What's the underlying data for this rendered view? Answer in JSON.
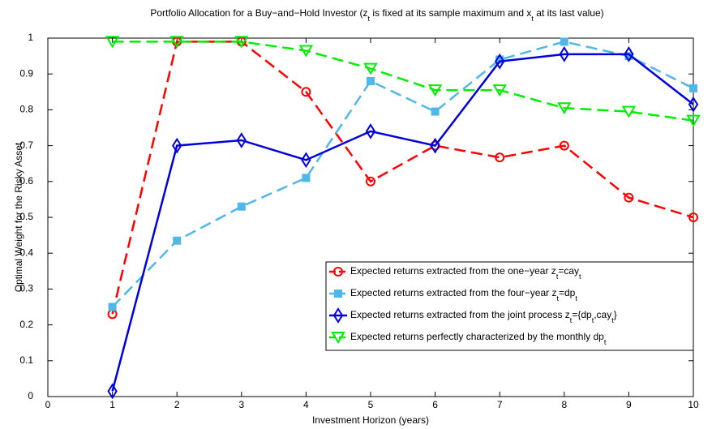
{
  "chart_data": {
    "type": "line",
    "title": [
      "Portfolio Allocation for a Buy−and−Hold Investor (z",
      "t",
      " is fixed at its sample maximum and x",
      "t",
      " at its last value)"
    ],
    "x_label": "Investment Horizon (years)",
    "y_label": "Optimal Weight for the Risky Asset",
    "x": [
      1,
      2,
      3,
      4,
      5,
      6,
      7,
      8,
      9,
      10
    ],
    "xlim": [
      0,
      10
    ],
    "xticks": [
      0,
      1,
      2,
      3,
      4,
      5,
      6,
      7,
      8,
      9,
      10
    ],
    "ylim": [
      0,
      1
    ],
    "yticks": [
      0,
      0.1,
      0.2,
      0.3,
      0.4,
      0.5,
      0.6,
      0.7,
      0.8,
      0.9,
      1
    ],
    "legend_position": "lower right",
    "series": [
      {
        "name": [
          "Expected returns extracted from the one−year z",
          "t",
          "=cay",
          "t"
        ],
        "color": "#ff0000",
        "marker": "circle",
        "dash": "dashed",
        "values": [
          0.23,
          0.99,
          0.99,
          0.85,
          0.6,
          0.7,
          0.667,
          0.7,
          0.555,
          0.5
        ]
      },
      {
        "name": [
          "Expected returns extracted from the four−year z",
          "t",
          "=dp",
          "t"
        ],
        "color": "#4fb8e8",
        "marker": "square",
        "dash": "dashed",
        "values": [
          0.25,
          0.435,
          0.53,
          0.61,
          0.88,
          0.795,
          0.94,
          0.99,
          0.95,
          0.86
        ]
      },
      {
        "name": [
          "Expected returns extracted from the joint process z",
          "t",
          "={dp",
          "t",
          ",cay",
          "t",
          "}"
        ],
        "color": "#0000dd",
        "marker": "diamond",
        "dash": "solid",
        "values": [
          0.015,
          0.7,
          0.715,
          0.66,
          0.74,
          0.7,
          0.935,
          0.955,
          0.955,
          0.815
        ]
      },
      {
        "name": [
          "Expected returns perfectly characterized by the monthly dp",
          "t"
        ],
        "color": "#00ee00",
        "marker": "triangle-down",
        "dash": "dashed",
        "values": [
          0.99,
          0.99,
          0.99,
          0.965,
          0.915,
          0.855,
          0.855,
          0.805,
          0.795,
          0.77
        ]
      }
    ]
  }
}
